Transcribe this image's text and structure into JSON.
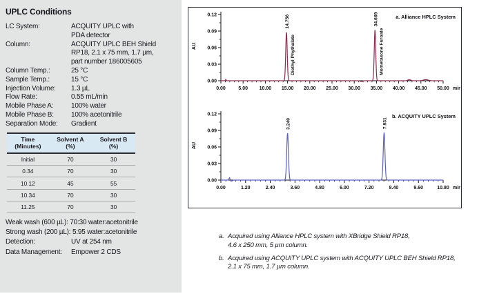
{
  "panel": {
    "title": "UPLC Conditions",
    "rows": [
      {
        "label": "LC System:",
        "value": "ACQUITY UPLC with\nPDA detector"
      },
      {
        "label": "Column:",
        "value": "ACQUITY UPLC BEH Shield\nRP18, 2.1 x 75 mm, 1.7 µm,\npart number 186005605"
      },
      {
        "label": "Column Temp.:",
        "value": "25 °C"
      },
      {
        "label": "Sample Temp.:",
        "value": "15 °C"
      },
      {
        "label": "Injection Volume:",
        "value": "1.3 µL"
      },
      {
        "label": "Flow Rate:",
        "value": "0.55 mL/min"
      },
      {
        "label": "Mobile Phase A:",
        "value": "100% water"
      },
      {
        "label": "Mobile Phase B:",
        "value": "100% acetonitrile"
      },
      {
        "label": "Separation Mode:",
        "value": "Gradient"
      }
    ],
    "gradient_table": {
      "headers": [
        "Time\n(Minutes)",
        "Solvent A\n(%)",
        "Solvent B\n(%)"
      ],
      "rows": [
        [
          "Initial",
          "70",
          "30"
        ],
        [
          "0.34",
          "70",
          "30"
        ],
        [
          "10.12",
          "45",
          "55"
        ],
        [
          "10.34",
          "70",
          "30"
        ],
        [
          "11.25",
          "70",
          "30"
        ]
      ]
    },
    "notes": [
      "Weak wash (600 µL): 70:30 water:acetonitrile",
      "Strong wash (200 µL): 5:95 water:acetonitrile"
    ],
    "rows2": [
      {
        "label": "Detection:",
        "value": "UV at 254 nm"
      },
      {
        "label": "Data Management:",
        "value": "Empower 2 CDS"
      }
    ]
  },
  "chart_data": [
    {
      "type": "line",
      "title": "a. Alliance HPLC System",
      "ylabel": "AU",
      "xunit": "min",
      "xlim": [
        0,
        50
      ],
      "ylim": [
        0,
        0.13
      ],
      "xtick_labels": [
        "0.00",
        "5.00",
        "10.00",
        "15.00",
        "20.00",
        "25.00",
        "30.00",
        "35.00",
        "40.00",
        "45.00",
        "50.00"
      ],
      "ytick_labels": [
        "0.00",
        "0.03",
        "0.06",
        "0.09",
        "0.12"
      ],
      "color": "#8e2a4e",
      "peaks": [
        {
          "time": 14.756,
          "label": "14.756",
          "compound": "Diethyl Phythalate",
          "height": 0.088,
          "sigma": 0.17
        },
        {
          "time": 34.669,
          "label": "34.669",
          "compound": "Mometasone Furoate",
          "height": 0.092,
          "sigma": 0.17
        }
      ],
      "baseline_features": [
        {
          "t": 1.1,
          "h": 0.0022,
          "w": 0.09
        },
        {
          "t": 31.6,
          "h": -0.0013,
          "w": 0.3
        },
        {
          "t": 42.4,
          "h": 0.0018,
          "w": 0.35
        },
        {
          "t": 46.1,
          "h": 0.002,
          "w": 0.55
        }
      ]
    },
    {
      "type": "line",
      "title": "b. ACQUITY UPLC System",
      "ylabel": "AU",
      "xunit": "min",
      "xlim": [
        0,
        10.8
      ],
      "ylim": [
        0,
        0.13
      ],
      "xtick_labels": [
        "0.00",
        "1.20",
        "2.40",
        "3.60",
        "4.80",
        "6.00",
        "7.20",
        "8.40",
        "9.60",
        "10.80"
      ],
      "ytick_labels": [
        "0.00",
        "0.03",
        "0.06",
        "0.09",
        "0.12"
      ],
      "color": "#5a5fc4",
      "peaks": [
        {
          "time": 3.24,
          "label": "3.240",
          "compound": "",
          "height": 0.085,
          "sigma": 0.042
        },
        {
          "time": 7.931,
          "label": "7.931",
          "compound": "",
          "height": 0.086,
          "sigma": 0.042
        }
      ],
      "baseline_features": [
        {
          "t": 0.42,
          "h": 0.0045,
          "w": 0.022
        },
        {
          "t": 0.52,
          "h": -0.0018,
          "w": 0.045
        }
      ]
    }
  ],
  "footnotes": [
    {
      "marker": "a.",
      "text": "Acquired using Alliance HPLC system with XBridge Shield RP18,\n4.6 x 250 mm, 5 µm column."
    },
    {
      "marker": "b.",
      "text": "Acquired using ACQUITY UPLC system with ACQUITY UPLC BEH Shield RP18,\n2.1 x 75 mm, 1.7 µm column."
    }
  ]
}
